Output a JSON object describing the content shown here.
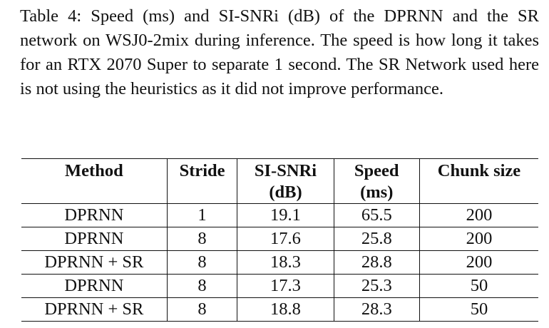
{
  "caption": "Table 4: Speed (ms) and SI-SNRi (dB) of the DPRNN and the SR network on WSJ0-2mix during inference. The speed is how long it takes for an RTX 2070 Super to separate 1 second. The SR Network used here is not using the heuristics as it did not improve performance.",
  "table": {
    "headers": {
      "method": "Method",
      "stride": "Stride",
      "sisnri_line1": "SI-SNRi",
      "sisnri_line2": "(dB)",
      "speed_line1": "Speed",
      "speed_line2": "(ms)",
      "chunk": "Chunk size"
    },
    "rows": [
      {
        "method": "DPRNN",
        "stride": "1",
        "sisnri": "19.1",
        "speed": "65.5",
        "chunk": "200"
      },
      {
        "method": "DPRNN",
        "stride": "8",
        "sisnri": "17.6",
        "speed": "25.8",
        "chunk": "200"
      },
      {
        "method": "DPRNN + SR",
        "stride": "8",
        "sisnri": "18.3",
        "speed": "28.8",
        "chunk": "200"
      },
      {
        "method": "DPRNN",
        "stride": "8",
        "sisnri": "17.3",
        "speed": "25.3",
        "chunk": "50"
      },
      {
        "method": "DPRNN + SR",
        "stride": "8",
        "sisnri": "18.8",
        "speed": "28.3",
        "chunk": "50"
      }
    ]
  }
}
